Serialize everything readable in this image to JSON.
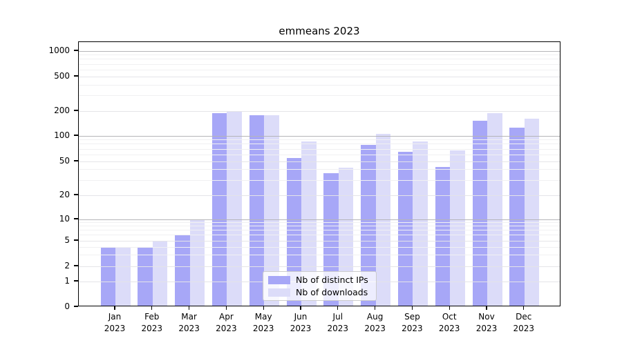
{
  "chart_data": {
    "type": "bar",
    "title": "emmeans 2023",
    "categories": [
      "Jan 2023",
      "Feb 2023",
      "Mar 2023",
      "Apr 2023",
      "May 2023",
      "Jun 2023",
      "Jul 2023",
      "Aug 2023",
      "Sep 2023",
      "Oct 2023",
      "Nov 2023",
      "Dec 2023"
    ],
    "x_tick_labels": {
      "months": [
        "Jan",
        "Feb",
        "Mar",
        "Apr",
        "May",
        "Jun",
        "Jul",
        "Aug",
        "Sep",
        "Oct",
        "Nov",
        "Dec"
      ],
      "year": "2023"
    },
    "series": [
      {
        "name": "Nb of distinct IPs",
        "color": "#a7a7f7",
        "values": [
          4,
          4,
          6,
          188,
          178,
          54,
          36,
          77,
          65,
          43,
          150,
          126
        ]
      },
      {
        "name": "Nb of downloads",
        "color": "#dcdcf9",
        "values": [
          4,
          5,
          10,
          195,
          175,
          85,
          42,
          104,
          85,
          67,
          188,
          161
        ]
      }
    ],
    "yscale": "symlog",
    "yticks": [
      0,
      1,
      2,
      5,
      10,
      20,
      50,
      100,
      200,
      500,
      1000
    ],
    "ylim": [
      0,
      1250
    ],
    "xlabel": "",
    "ylabel": "",
    "grid": true,
    "legend": {
      "position": "lower-center-inside",
      "labels": [
        "Nb of distinct IPs",
        "Nb of downloads"
      ]
    }
  }
}
